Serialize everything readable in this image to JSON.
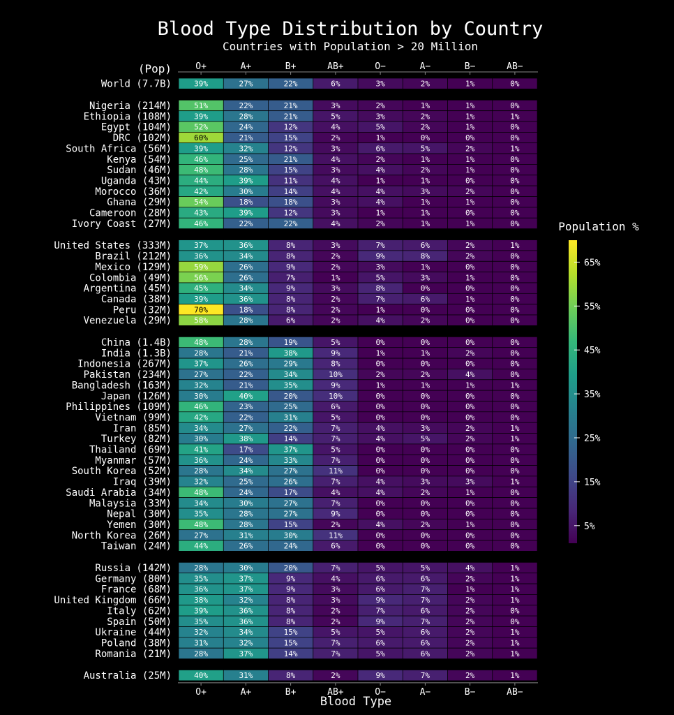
{
  "chart_data": {
    "type": "heatmap",
    "title": "Blood Type Distribution by Country",
    "subtitle": "Countries with Population > 20 Million",
    "pop_label": "(Pop)",
    "xlabel": "Blood Type",
    "columns": [
      "O+",
      "A+",
      "B+",
      "AB+",
      "O−",
      "A−",
      "B−",
      "AB−"
    ],
    "colorbar": {
      "title": "Population %",
      "range": [
        1,
        70
      ],
      "ticks": [
        "5%",
        "15%",
        "25%",
        "35%",
        "45%",
        "55%",
        "65%"
      ],
      "tick_values": [
        5,
        15,
        25,
        35,
        45,
        55,
        65
      ]
    },
    "groups": [
      {
        "rows": [
          {
            "label": "World (7.7B)",
            "values": [
              39,
              27,
              22,
              6,
              3,
              2,
              1,
              0
            ]
          }
        ]
      },
      {
        "rows": [
          {
            "label": "Nigeria (214M)",
            "values": [
              51,
              22,
              21,
              3,
              2,
              1,
              1,
              0
            ]
          },
          {
            "label": "Ethiopia (108M)",
            "values": [
              39,
              28,
              21,
              5,
              3,
              2,
              1,
              1
            ]
          },
          {
            "label": "Egypt (104M)",
            "values": [
              52,
              24,
              12,
              4,
              5,
              2,
              1,
              0
            ]
          },
          {
            "label": "DRC (102M)",
            "values": [
              60,
              21,
              15,
              2,
              1,
              0,
              0,
              0
            ]
          },
          {
            "label": "South Africa (56M)",
            "values": [
              39,
              32,
              12,
              3,
              6,
              5,
              2,
              1
            ]
          },
          {
            "label": "Kenya (54M)",
            "values": [
              46,
              25,
              21,
              4,
              2,
              1,
              1,
              0
            ]
          },
          {
            "label": "Sudan (46M)",
            "values": [
              48,
              28,
              15,
              3,
              4,
              2,
              1,
              0
            ]
          },
          {
            "label": "Uganda (43M)",
            "values": [
              44,
              39,
              11,
              4,
              1,
              1,
              0,
              0
            ]
          },
          {
            "label": "Morocco (36M)",
            "values": [
              42,
              30,
              14,
              4,
              4,
              3,
              2,
              0
            ]
          },
          {
            "label": "Ghana (29M)",
            "values": [
              54,
              18,
              18,
              3,
              4,
              1,
              1,
              0
            ]
          },
          {
            "label": "Cameroon (28M)",
            "values": [
              43,
              39,
              12,
              3,
              1,
              1,
              0,
              0
            ]
          },
          {
            "label": "Ivory Coast (27M)",
            "values": [
              46,
              22,
              22,
              4,
              2,
              1,
              1,
              0
            ]
          }
        ]
      },
      {
        "rows": [
          {
            "label": "United States (333M)",
            "values": [
              37,
              36,
              8,
              3,
              7,
              6,
              2,
              1
            ]
          },
          {
            "label": "Brazil (212M)",
            "values": [
              36,
              34,
              8,
              2,
              9,
              8,
              2,
              0
            ]
          },
          {
            "label": "Mexico (129M)",
            "values": [
              59,
              26,
              9,
              2,
              3,
              1,
              0,
              0
            ]
          },
          {
            "label": "Colombia (49M)",
            "values": [
              56,
              26,
              7,
              1,
              5,
              3,
              1,
              0
            ]
          },
          {
            "label": "Argentina (45M)",
            "values": [
              45,
              34,
              9,
              3,
              8,
              0,
              0,
              0
            ]
          },
          {
            "label": "Canada (38M)",
            "values": [
              39,
              36,
              8,
              2,
              7,
              6,
              1,
              0
            ]
          },
          {
            "label": "Peru (32M)",
            "values": [
              70,
              18,
              8,
              2,
              1,
              0,
              0,
              0
            ]
          },
          {
            "label": "Venezuela (29M)",
            "values": [
              58,
              28,
              6,
              2,
              4,
              2,
              0,
              0
            ]
          }
        ]
      },
      {
        "rows": [
          {
            "label": "China (1.4B)",
            "values": [
              48,
              28,
              19,
              5,
              0,
              0,
              0,
              0
            ]
          },
          {
            "label": "India (1.3B)",
            "values": [
              28,
              21,
              38,
              9,
              1,
              1,
              2,
              0
            ]
          },
          {
            "label": "Indonesia (267M)",
            "values": [
              37,
              26,
              29,
              8,
              0,
              0,
              0,
              0
            ]
          },
          {
            "label": "Pakistan (234M)",
            "values": [
              27,
              22,
              34,
              10,
              2,
              2,
              4,
              0
            ]
          },
          {
            "label": "Bangladesh (163M)",
            "values": [
              32,
              21,
              35,
              9,
              1,
              1,
              1,
              1
            ]
          },
          {
            "label": "Japan (126M)",
            "values": [
              30,
              40,
              20,
              10,
              0,
              0,
              0,
              0
            ]
          },
          {
            "label": "Philippines (109M)",
            "values": [
              46,
              23,
              25,
              6,
              0,
              0,
              0,
              0
            ]
          },
          {
            "label": "Vietnam (99M)",
            "values": [
              42,
              22,
              31,
              5,
              0,
              0,
              0,
              0
            ]
          },
          {
            "label": "Iran (85M)",
            "values": [
              34,
              27,
              22,
              7,
              4,
              3,
              2,
              1
            ]
          },
          {
            "label": "Turkey (82M)",
            "values": [
              30,
              38,
              14,
              7,
              4,
              5,
              2,
              1
            ]
          },
          {
            "label": "Thailand (69M)",
            "values": [
              41,
              17,
              37,
              5,
              0,
              0,
              0,
              0
            ]
          },
          {
            "label": "Myanmar (57M)",
            "values": [
              36,
              24,
              33,
              7,
              0,
              0,
              0,
              0
            ]
          },
          {
            "label": "South Korea (52M)",
            "values": [
              28,
              34,
              27,
              11,
              0,
              0,
              0,
              0
            ]
          },
          {
            "label": "Iraq (39M)",
            "values": [
              32,
              25,
              26,
              7,
              4,
              3,
              3,
              1
            ]
          },
          {
            "label": "Saudi Arabia (34M)",
            "values": [
              48,
              24,
              17,
              4,
              4,
              2,
              1,
              0
            ]
          },
          {
            "label": "Malaysia (33M)",
            "values": [
              34,
              30,
              27,
              7,
              0,
              0,
              0,
              0
            ]
          },
          {
            "label": "Nepal (30M)",
            "values": [
              35,
              28,
              27,
              9,
              0,
              0,
              0,
              0
            ]
          },
          {
            "label": "Yemen (30M)",
            "values": [
              48,
              28,
              15,
              2,
              4,
              2,
              1,
              0
            ]
          },
          {
            "label": "North Korea (26M)",
            "values": [
              27,
              31,
              30,
              11,
              0,
              0,
              0,
              0
            ]
          },
          {
            "label": "Taiwan (24M)",
            "values": [
              44,
              26,
              24,
              6,
              0,
              0,
              0,
              0
            ]
          }
        ]
      },
      {
        "rows": [
          {
            "label": "Russia (142M)",
            "values": [
              28,
              30,
              20,
              7,
              5,
              5,
              4,
              1
            ]
          },
          {
            "label": "Germany (80M)",
            "values": [
              35,
              37,
              9,
              4,
              6,
              6,
              2,
              1
            ]
          },
          {
            "label": "France (68M)",
            "values": [
              36,
              37,
              9,
              3,
              6,
              7,
              1,
              1
            ]
          },
          {
            "label": "United Kingdom (66M)",
            "values": [
              38,
              32,
              8,
              3,
              9,
              7,
              2,
              1
            ]
          },
          {
            "label": "Italy (62M)",
            "values": [
              39,
              36,
              8,
              2,
              7,
              6,
              2,
              0
            ]
          },
          {
            "label": "Spain (50M)",
            "values": [
              35,
              36,
              8,
              2,
              9,
              7,
              2,
              0
            ]
          },
          {
            "label": "Ukraine (44M)",
            "values": [
              32,
              34,
              15,
              5,
              5,
              6,
              2,
              1
            ]
          },
          {
            "label": "Poland (38M)",
            "values": [
              31,
              32,
              15,
              7,
              6,
              6,
              2,
              1
            ]
          },
          {
            "label": "Romania (21M)",
            "values": [
              28,
              37,
              14,
              7,
              5,
              6,
              2,
              1
            ]
          }
        ]
      },
      {
        "rows": [
          {
            "label": "Australia (25M)",
            "values": [
              40,
              31,
              8,
              2,
              9,
              7,
              2,
              1
            ]
          }
        ]
      }
    ]
  }
}
